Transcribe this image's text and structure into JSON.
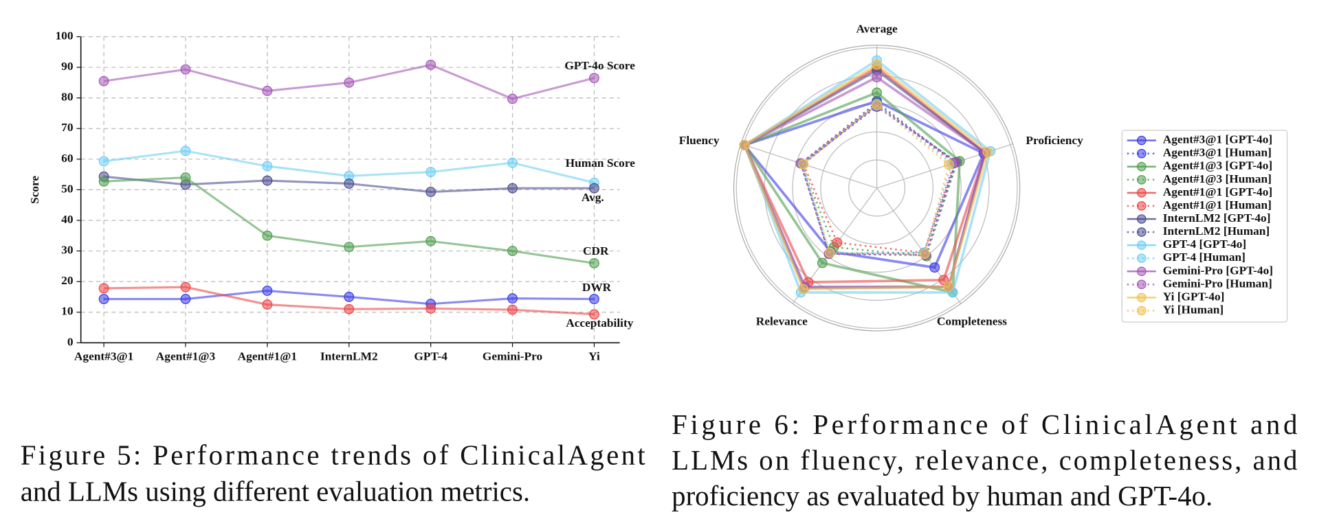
{
  "chart_data": [
    {
      "type": "line",
      "ylabel": "Score",
      "categories": [
        "Agent#3@1",
        "Agent#1@3",
        "Agent#1@1",
        "InternLM2",
        "GPT-4",
        "Gemini-Pro",
        "Yi"
      ],
      "ylim": [
        0,
        100
      ],
      "yticks": [
        0,
        10,
        20,
        30,
        40,
        50,
        60,
        70,
        80,
        90,
        100
      ],
      "grid": true,
      "series": [
        {
          "name": "GPT-4o Score",
          "color": "#a557b8",
          "values": [
            85.5,
            89.3,
            82.3,
            85,
            90.8,
            79.7,
            86.5
          ]
        },
        {
          "name": "Human Score",
          "color": "#6ecff5",
          "values": [
            59.3,
            62.7,
            57.7,
            54.5,
            55.8,
            58.8,
            52.3
          ]
        },
        {
          "name": "Avg.",
          "color": "#4b4d8f",
          "values": [
            54.3,
            51.7,
            53,
            52,
            49.3,
            50.5,
            50.5
          ]
        },
        {
          "name": "CDR",
          "color": "#4f9f4f",
          "values": [
            52.7,
            54,
            35,
            31.3,
            33.2,
            30,
            26
          ]
        },
        {
          "name": "DWR",
          "color": "#3b3be8",
          "values": [
            14.3,
            14.3,
            17,
            15,
            12.7,
            14.5,
            14.3
          ]
        },
        {
          "name": "Acceptability",
          "color": "#ec4545",
          "values": [
            17.8,
            18.2,
            12.5,
            11,
            11.2,
            10.8,
            9.3
          ]
        }
      ],
      "caption": [
        "Figure 5: Performance trends of ClinicalAgent",
        "and LLMs using different evaluation metrics."
      ]
    },
    {
      "type": "radar",
      "categories": [
        "Average",
        "Proficiency",
        "Completeness",
        "Relevance",
        "Fluency"
      ],
      "rlim": [
        0,
        5
      ],
      "rticks": [
        1,
        2,
        3,
        4,
        5
      ],
      "series": [
        {
          "name": "Agent#3@1 [GPT-4o]",
          "color": "#3b3be8",
          "linestyle": "solid",
          "values": [
            3.1,
            4.0,
            3.5,
            2.8,
            4.95
          ]
        },
        {
          "name": "Agent#3@1 [Human]",
          "color": "#3b3be8",
          "linestyle": "dotted",
          "values": [
            2.9,
            3.0,
            2.95,
            2.9,
            2.8
          ]
        },
        {
          "name": "Agent#1@3 [GPT-4o]",
          "color": "#4f9f4f",
          "linestyle": "solid",
          "values": [
            3.4,
            3.1,
            4.6,
            3.3,
            4.95
          ]
        },
        {
          "name": "Agent#1@3 [Human]",
          "color": "#4f9f4f",
          "linestyle": "dotted",
          "values": [
            2.95,
            3.0,
            3.0,
            2.6,
            2.8
          ]
        },
        {
          "name": "Agent#1@1 [GPT-4o]",
          "color": "#ec4545",
          "linestyle": "solid",
          "values": [
            4.3,
            4.05,
            4.05,
            4.15,
            4.95
          ]
        },
        {
          "name": "Agent#1@1 [Human]",
          "color": "#ec4545",
          "linestyle": "dotted",
          "values": [
            3.0,
            2.9,
            2.85,
            2.4,
            2.75
          ]
        },
        {
          "name": "InternLM2 [GPT-4o]",
          "color": "#4b4d8f",
          "linestyle": "solid",
          "values": [
            4.2,
            4.05,
            4.35,
            4.4,
            4.95
          ]
        },
        {
          "name": "InternLM2 [Human]",
          "color": "#4b4d8f",
          "linestyle": "dotted",
          "values": [
            3.05,
            2.95,
            2.85,
            2.9,
            2.85
          ]
        },
        {
          "name": "GPT-4 [GPT-4o]",
          "color": "#6ecff5",
          "linestyle": "solid",
          "values": [
            4.55,
            4.25,
            4.6,
            4.6,
            4.95
          ]
        },
        {
          "name": "GPT-4 [Human]",
          "color": "#6ecff5",
          "linestyle": "dotted",
          "values": [
            3.0,
            2.8,
            2.85,
            2.85,
            2.8
          ]
        },
        {
          "name": "Gemini-Pro [GPT-4o]",
          "color": "#a557b8",
          "linestyle": "solid",
          "values": [
            3.95,
            4.05,
            4.35,
            4.35,
            4.95
          ]
        },
        {
          "name": "Gemini-Pro [Human]",
          "color": "#a557b8",
          "linestyle": "dotted",
          "values": [
            2.95,
            2.95,
            2.95,
            2.9,
            2.85
          ]
        },
        {
          "name": "Yi [GPT-4o]",
          "color": "#f2c14e",
          "linestyle": "solid",
          "values": [
            4.4,
            4.15,
            4.35,
            4.45,
            4.95
          ]
        },
        {
          "name": "Yi [Human]",
          "color": "#f2c14e",
          "linestyle": "dotted",
          "values": [
            2.95,
            2.7,
            2.9,
            2.85,
            2.75
          ]
        }
      ],
      "caption": [
        "Figure 6: Performance of ClinicalAgent and",
        "LLMs on fluency, relevance, completeness, and",
        "proficiency as evaluated by human and GPT-4o."
      ]
    }
  ]
}
